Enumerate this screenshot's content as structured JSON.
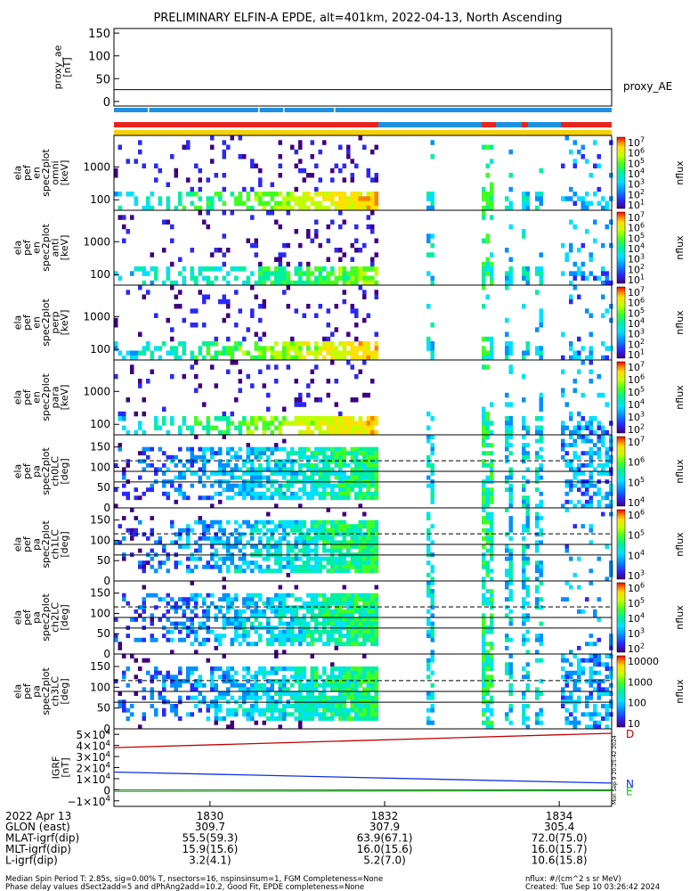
{
  "title": "PRELIMINARY ELFIN-A EPDE, alt=401km, 2022-04-13, North Ascending",
  "colors": {
    "red_bar": "#e8241e",
    "blue_bar": "#1e90e0",
    "yellow_bar": "#f5d000",
    "igrf_x": "#c00000",
    "igrf_y": "#1030e0",
    "igrf_z": "#10c010",
    "spectrogram": [
      "#400080",
      "#2828ff",
      "#0090ff",
      "#00e0ff",
      "#00f0a0",
      "#40ff20",
      "#c0ff00",
      "#ffe000",
      "#ff8000",
      "#ff0000"
    ]
  },
  "chart_data": [
    {
      "type": "line",
      "name": "proxy_ae",
      "ylabel": "proxy_ae\n[nT]",
      "ylim": [
        -10,
        160
      ],
      "yticks": [
        "150",
        "100",
        "50",
        "0"
      ],
      "series": [
        {
          "name": "proxy_AE",
          "x": [
            1828.9,
            1834.6
          ],
          "values": [
            26,
            26
          ]
        }
      ]
    },
    {
      "type": "heatmap",
      "ylabel": "ela\npef\nen\nspec2plot\nomni\n[keV]",
      "yscale": "log",
      "yticks": [
        "1000",
        "100"
      ],
      "zlabel": "nflux",
      "zticks": [
        "10^7",
        "10^6",
        "10^5",
        "10^4",
        "10^3",
        "10^2",
        "10^1"
      ]
    },
    {
      "type": "heatmap",
      "ylabel": "ela\npef\nen\nspec2plot\nanti\n[keV]",
      "yscale": "log",
      "yticks": [
        "1000",
        "100"
      ],
      "zlabel": "nflux",
      "zticks": [
        "10^7",
        "10^6",
        "10^5",
        "10^4",
        "10^3",
        "10^2",
        "10^1"
      ]
    },
    {
      "type": "heatmap",
      "ylabel": "ela\npef\nen\nspec2plot\nperp\n[keV]",
      "yscale": "log",
      "yticks": [
        "1000",
        "100"
      ],
      "zlabel": "nflux",
      "zticks": [
        "10^7",
        "10^6",
        "10^5",
        "10^4",
        "10^3",
        "10^2",
        "10^1"
      ]
    },
    {
      "type": "heatmap",
      "ylabel": "ela\npef\nen\nspec2plot\npara\n[keV]",
      "yscale": "log",
      "yticks": [
        "1000",
        "100"
      ],
      "zlabel": "nflux",
      "zticks": [
        "10^7",
        "10^6",
        "10^5",
        "10^4",
        "10^3",
        "10^2"
      ]
    },
    {
      "type": "heatmap",
      "ylabel": "ela\npef\npa\nspec2plot\nch0LC\n[deg]",
      "ylim": [
        0,
        180
      ],
      "yticks": [
        "150",
        "100",
        "50",
        "0"
      ],
      "zlabel": "nflux",
      "zticks": [
        "10^7",
        "10^6",
        "10^5",
        "10^4"
      ]
    },
    {
      "type": "heatmap",
      "ylabel": "ela\npef\npa\nspec2plot\nch1LC\n[deg]",
      "ylim": [
        0,
        180
      ],
      "yticks": [
        "150",
        "100",
        "50",
        "0"
      ],
      "zlabel": "nflux",
      "zticks": [
        "10^6",
        "10^5",
        "10^4",
        "10^3"
      ]
    },
    {
      "type": "heatmap",
      "ylabel": "ela\npef\npa\nspec2plot\nch2LC\n[deg]",
      "ylim": [
        0,
        180
      ],
      "yticks": [
        "150",
        "100",
        "50",
        "0"
      ],
      "zlabel": "nflux",
      "zticks": [
        "10^6",
        "10^5",
        "10^4",
        "10^3",
        "10^2"
      ]
    },
    {
      "type": "heatmap",
      "ylabel": "ela\npef\npa\nspec2plot\nch3LC\n[deg]",
      "ylim": [
        0,
        180
      ],
      "yticks": [
        "150",
        "100",
        "50",
        "0"
      ],
      "zlabel": "nflux",
      "zticks": [
        "10000",
        "1000",
        "100",
        "10"
      ]
    },
    {
      "type": "line",
      "ylabel": "IGRF\n[nT]",
      "yticks": [
        "5×10^4",
        "4×10^4",
        "3×10^4",
        "2×10^4",
        "1×10^4",
        "0",
        "−1×10^4"
      ],
      "ylim": [
        -15000,
        55000
      ],
      "series": [
        {
          "name": "D",
          "x": [
            1828.9,
            1834.6
          ],
          "values": [
            38000,
            51000
          ]
        },
        {
          "name": "N",
          "x": [
            1828.9,
            1834.6
          ],
          "values": [
            16000,
            6000
          ]
        },
        {
          "name": "E",
          "x": [
            1828.9,
            1834.6
          ],
          "values": [
            -1500,
            -800
          ]
        }
      ],
      "side_note": "Mon Sep  9 20:25:42 2024"
    }
  ],
  "xaxis": {
    "date": "2022 Apr 13",
    "ticks": [
      "1830",
      "1832",
      "1834"
    ],
    "rows": [
      {
        "label": "GLON (east)",
        "values": [
          "309.7",
          "307.9",
          "305.4"
        ]
      },
      {
        "label": "MLAT-igrf(dip)",
        "values": [
          "55.5(59.3)",
          "63.9(67.1)",
          "72.0(75.0)"
        ]
      },
      {
        "label": "MLT-igrf(dip)",
        "values": [
          "15.9(15.6)",
          "16.0(15.6)",
          "16.0(15.7)"
        ]
      },
      {
        "label": "L-igrf(dip)",
        "values": [
          "3.2(4.1)",
          "5.2(7.0)",
          "10.6(15.8)"
        ]
      }
    ]
  },
  "footer": {
    "line1": "Median Spin Period T: 2.85s, sig=0.00% T, nsectors=16, nspinsinsum=1, FGM Completeness=None",
    "line2": "Phase delay values dSect2add=5 and dPhAng2add=10.2, Good Fit, EPDE completeness=None",
    "units": "nflux: #/(cm^2 s sr MeV)",
    "created": "Created: Tue Sep 10 03:26:42 2024"
  }
}
